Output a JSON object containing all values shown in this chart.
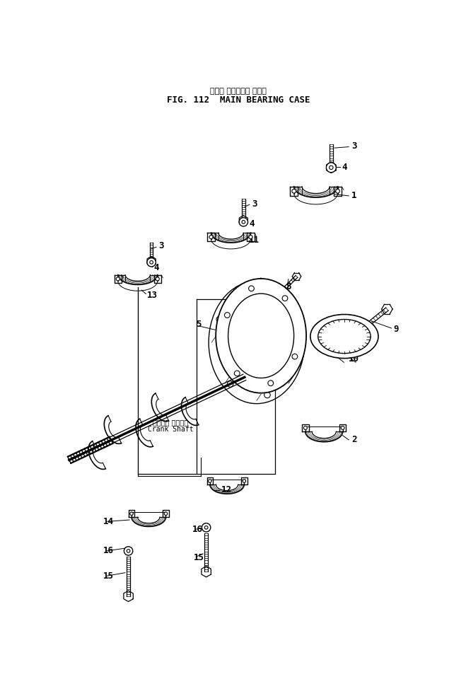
{
  "title_jp": "メイン ベアリング ケース",
  "title_en": "FIG. 112  MAIN BEARING CASE",
  "bg_color": "#ffffff",
  "fig_width": 6.59,
  "fig_height": 9.6,
  "crankshaft_jp": "クランク シャフト",
  "crankshaft_en": "Crank Shaft"
}
